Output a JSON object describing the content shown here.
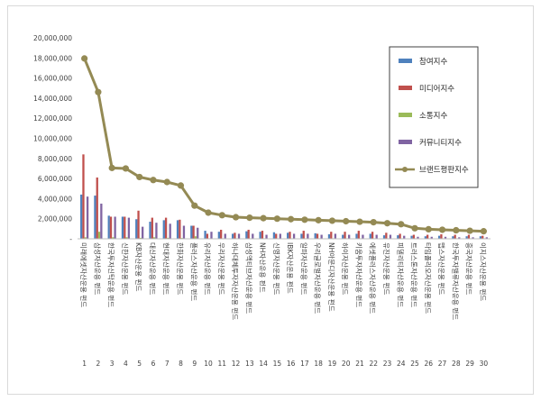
{
  "chart_data": {
    "type": "bar",
    "categories": [
      "1",
      "2",
      "3",
      "4",
      "5",
      "6",
      "7",
      "8",
      "9",
      "10",
      "11",
      "12",
      "13",
      "14",
      "15",
      "16",
      "17",
      "18",
      "19",
      "20",
      "21",
      "22",
      "23",
      "24",
      "25",
      "26",
      "27",
      "28",
      "29",
      "30"
    ],
    "category_names": [
      "미래에셋자산운용 펀드",
      "삼성자산운용 펀드",
      "한국투자신탁운용 펀드",
      "신한자산운용 펀드",
      "KB자산운용 펀드",
      "대신자산운용 펀드",
      "현대자산운용 펀드",
      "한화자산운용 펀드",
      "플러스자산운용 펀드",
      "유리자산운용 펀드",
      "우리자산운용 펀드",
      "하나대체투자자산운용 펀드",
      "삼성액티브자산운용 펀드",
      "NH자산운용 펀드",
      "신영자산운용 펀드",
      "IBK자산운용 펀드",
      "알파자산운용 펀드",
      "우리글로벌자산운용 펀드",
      "NH아문디자산운용 펀드",
      "하이자산운용 펀드",
      "키움투자자산운용 펀드",
      "에셋플러스자산운용 펀드",
      "유진자산운용 펀드",
      "피델리티자산운용 펀드",
      "트러스톤자산운용 펀드",
      "타임폴리오자산운용 펀드",
      "맵스자산운용 펀드",
      "한국투자밸류자산운용 펀드",
      "흥국자산운용 펀드",
      "이지스자산운용 펀드"
    ],
    "yticks": [
      "-",
      "2,000,000",
      "4,000,000",
      "6,000,000",
      "8,000,000",
      "10,000,000",
      "12,000,000",
      "14,000,000",
      "16,000,000",
      "18,000,000",
      "20,000,000"
    ],
    "ylim": [
      0,
      20000000
    ],
    "legend_position": "right",
    "series": [
      {
        "name": "참여지수",
        "type": "bar",
        "color": "#4f81bd",
        "values": [
          4400000,
          4300000,
          2300000,
          2200000,
          1950000,
          1700000,
          1850000,
          1850000,
          1300000,
          800000,
          700000,
          500000,
          750000,
          700000,
          650000,
          600000,
          500000,
          550000,
          450000,
          400000,
          500000,
          500000,
          350000,
          350000,
          300000,
          250000,
          300000,
          250000,
          250000,
          250000
        ]
      },
      {
        "name": "미디어지수",
        "type": "bar",
        "color": "#c0504d",
        "values": [
          8400000,
          6100000,
          2200000,
          2200000,
          2800000,
          2100000,
          2100000,
          1900000,
          1300000,
          500000,
          900000,
          600000,
          900000,
          800000,
          500000,
          700000,
          800000,
          500000,
          700000,
          700000,
          800000,
          700000,
          600000,
          500000,
          400000,
          400000,
          450000,
          400000,
          400000,
          300000
        ]
      },
      {
        "name": "소통지수",
        "type": "bar",
        "color": "#9bbb59",
        "values": [
          150000,
          700000,
          150000,
          150000,
          100000,
          150000,
          100000,
          80000,
          250000,
          50000,
          50000,
          50000,
          50000,
          50000,
          50000,
          50000,
          50000,
          50000,
          50000,
          50000,
          50000,
          50000,
          50000,
          50000,
          50000,
          50000,
          50000,
          50000,
          50000,
          50000
        ]
      },
      {
        "name": "커뮤니티지수",
        "type": "bar",
        "color": "#8064a2",
        "values": [
          4200000,
          3500000,
          2200000,
          2100000,
          1200000,
          1600000,
          1500000,
          1300000,
          1100000,
          700000,
          500000,
          500000,
          500000,
          400000,
          500000,
          500000,
          500000,
          400000,
          500000,
          400000,
          400000,
          400000,
          400000,
          300000,
          200000,
          200000,
          200000,
          150000,
          150000,
          150000
        ]
      },
      {
        "name": "브랜드평판지수",
        "type": "line",
        "color": "#948a54",
        "values": [
          17950000,
          14600000,
          7050000,
          7000000,
          6150000,
          5850000,
          5650000,
          5300000,
          3300000,
          2600000,
          2350000,
          2150000,
          2100000,
          2050000,
          2000000,
          1950000,
          1900000,
          1850000,
          1800000,
          1750000,
          1700000,
          1650000,
          1550000,
          1450000,
          1050000,
          950000,
          900000,
          850000,
          800000,
          750000
        ]
      }
    ]
  }
}
